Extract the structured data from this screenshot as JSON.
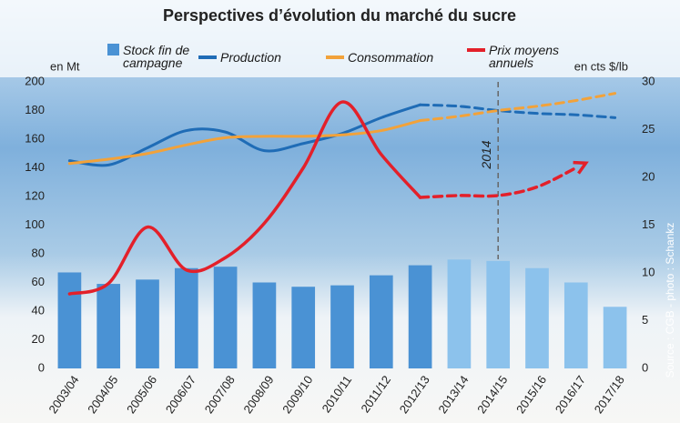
{
  "chart_data": {
    "type": "bar-line",
    "title": "Perspectives d’évolution du marché du sucre",
    "ylabel": "en Mt",
    "y2label": "en cts $/lb",
    "source": "Source : CGB - photo : Schankz",
    "categories": [
      "2003/04",
      "2004/05",
      "2005/06",
      "2006/07",
      "2007/08",
      "2008/09",
      "2009/10",
      "2010/11",
      "2011/12",
      "2012/13",
      "2013/14",
      "2014/15",
      "2015/16",
      "2016/17",
      "2017/18"
    ],
    "ylim": [
      0,
      200
    ],
    "yticks": [
      0,
      20,
      40,
      60,
      80,
      100,
      120,
      140,
      160,
      180,
      200
    ],
    "y2lim": [
      0,
      30
    ],
    "y2ticks": [
      0,
      5,
      10,
      15,
      20,
      25,
      30
    ],
    "grid": false,
    "dashed_from": "2012/13",
    "vline": {
      "category": "2014/15",
      "label": "2014"
    },
    "series": [
      {
        "name": "Stock fin de campagne",
        "type": "bar",
        "color": "#4a92d4",
        "colors": [
          "#4a92d4",
          "#4a92d4",
          "#4a92d4",
          "#4a92d4",
          "#4a92d4",
          "#4a92d4",
          "#4a92d4",
          "#4a92d4",
          "#4a92d4",
          "#4a92d4",
          "#8cc2ec",
          "#8cc2ec",
          "#8cc2ec",
          "#8cc2ec",
          "#8cc2ec"
        ],
        "values": [
          67,
          59,
          62,
          70,
          71,
          60,
          57,
          58,
          65,
          72,
          76,
          75,
          70,
          60,
          43
        ]
      },
      {
        "name": "Production",
        "type": "line",
        "color": "#1f6cb6",
        "values": [
          145,
          142,
          154,
          166,
          165,
          152,
          157,
          164,
          175,
          184,
          183,
          180,
          178,
          177,
          175
        ]
      },
      {
        "name": "Consommation",
        "type": "line",
        "color": "#f2a23a",
        "values": [
          143,
          146,
          150,
          156,
          161,
          162,
          162,
          163,
          166,
          173,
          176,
          180,
          183,
          187,
          192
        ]
      },
      {
        "name": "Prix moyens annuels",
        "type": "line",
        "axis": "y2",
        "color": "#e3202a",
        "arrow": true,
        "values": [
          7.8,
          8.9,
          14.8,
          10.3,
          11.6,
          15.2,
          21,
          27.9,
          22.4,
          17.9,
          18.1,
          18.1,
          19,
          21,
          null
        ]
      }
    ]
  }
}
